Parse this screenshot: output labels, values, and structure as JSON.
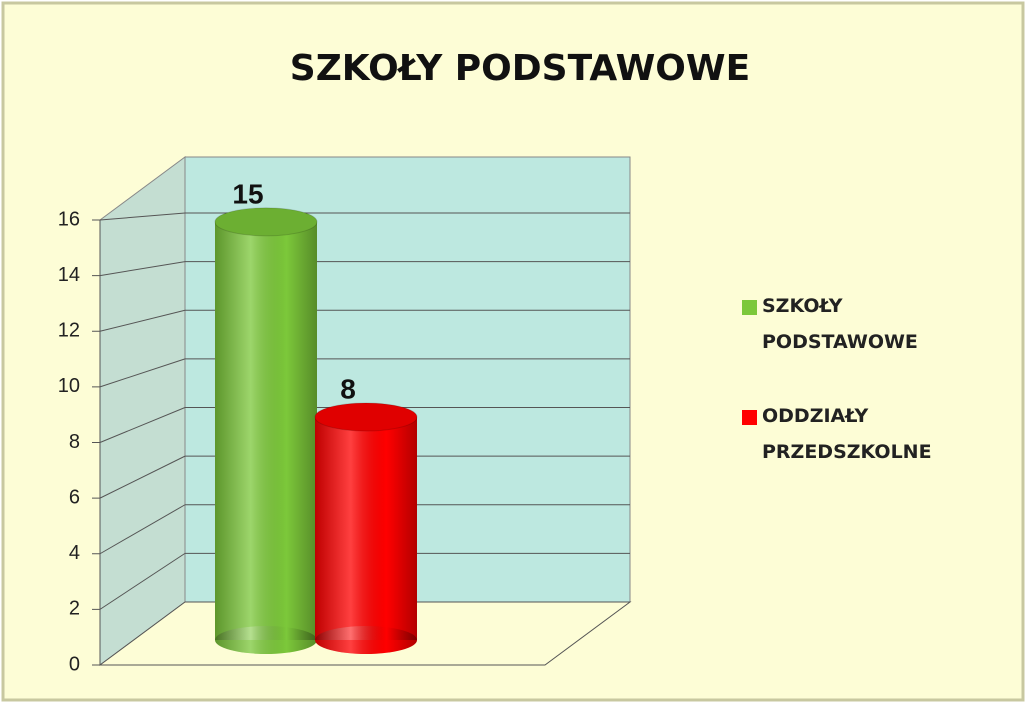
{
  "chart_data": {
    "type": "bar",
    "title": "SZKOŁY PODSTAWOWE",
    "categories": [
      null
    ],
    "series": [
      {
        "name": "SZKOŁY PODSTAWOWE",
        "color": "#7cc83a",
        "values": [
          15
        ]
      },
      {
        "name": "ODDZIAŁY PRZEDSZKOLNE",
        "color": "#ff0000",
        "values": [
          8
        ]
      }
    ],
    "ylim": [
      0,
      16
    ],
    "yticks": [
      0,
      2,
      4,
      6,
      8,
      10,
      12,
      14,
      16
    ],
    "grid": true,
    "legend": "right",
    "data_labels": true
  }
}
